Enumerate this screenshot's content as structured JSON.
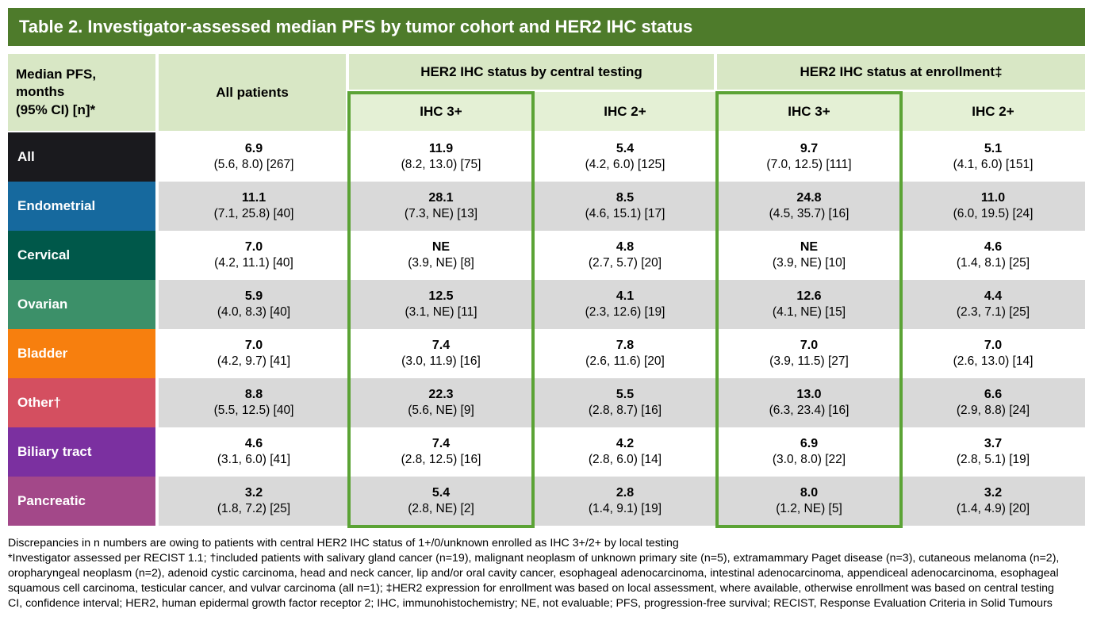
{
  "title": "Table 2. Investigator-assessed median PFS by tumor cohort and HER2 IHC status",
  "colors": {
    "title_bar": "#4e7b2b",
    "header_cell": "#d8e7c5",
    "subheader_cell": "#e4f0d5",
    "highlight_border": "#5ba335",
    "row_alt_gray": "#d9d9d9",
    "row_white": "#ffffff"
  },
  "header": {
    "measure_label": "Median PFS,\nmonths\n(95% CI) [n]*",
    "all_patients": "All patients",
    "group_central": "HER2 IHC status by central testing",
    "group_enrollment": "HER2 IHC status at enrollment‡",
    "sub_central_3plus": "IHC 3+",
    "sub_central_2plus": "IHC 2+",
    "sub_enrollment_3plus": "IHC 3+",
    "sub_enrollment_2plus": "IHC 2+"
  },
  "rows": [
    {
      "label": "All",
      "color": "#1a1a1e",
      "cells": [
        {
          "value": "6.9",
          "ci": "(5.6, 8.0) [267]"
        },
        {
          "value": "11.9",
          "ci": "(8.2, 13.0) [75]"
        },
        {
          "value": "5.4",
          "ci": "(4.2, 6.0) [125]"
        },
        {
          "value": "9.7",
          "ci": "(7.0, 12.5) [111]"
        },
        {
          "value": "5.1",
          "ci": "(4.1, 6.0) [151]"
        }
      ]
    },
    {
      "label": "Endometrial",
      "color": "#16699e",
      "cells": [
        {
          "value": "11.1",
          "ci": "(7.1, 25.8) [40]"
        },
        {
          "value": "28.1",
          "ci": "(7.3, NE) [13]"
        },
        {
          "value": "8.5",
          "ci": "(4.6, 15.1) [17]"
        },
        {
          "value": "24.8",
          "ci": "(4.5, 35.7) [16]"
        },
        {
          "value": "11.0",
          "ci": "(6.0, 19.5) [24]"
        }
      ]
    },
    {
      "label": "Cervical",
      "color": "#00584a",
      "cells": [
        {
          "value": "7.0",
          "ci": "(4.2, 11.1) [40]"
        },
        {
          "value": "NE",
          "ci": "(3.9, NE) [8]"
        },
        {
          "value": "4.8",
          "ci": "(2.7, 5.7) [20]"
        },
        {
          "value": "NE",
          "ci": "(3.9, NE) [10]"
        },
        {
          "value": "4.6",
          "ci": "(1.4, 8.1) [25]"
        }
      ]
    },
    {
      "label": "Ovarian",
      "color": "#3c9069",
      "cells": [
        {
          "value": "5.9",
          "ci": "(4.0, 8.3) [40]"
        },
        {
          "value": "12.5",
          "ci": "(3.1, NE) [11]"
        },
        {
          "value": "4.1",
          "ci": "(2.3, 12.6) [19]"
        },
        {
          "value": "12.6",
          "ci": "(4.1, NE) [15]"
        },
        {
          "value": "4.4",
          "ci": "(2.3, 7.1) [25]"
        }
      ]
    },
    {
      "label": "Bladder",
      "color": "#f77f0e",
      "cells": [
        {
          "value": "7.0",
          "ci": "(4.2, 9.7) [41]"
        },
        {
          "value": "7.4",
          "ci": "(3.0, 11.9) [16]"
        },
        {
          "value": "7.8",
          "ci": "(2.6, 11.6) [20]"
        },
        {
          "value": "7.0",
          "ci": "(3.9, 11.5) [27]"
        },
        {
          "value": "7.0",
          "ci": "(2.6, 13.0) [14]"
        }
      ]
    },
    {
      "label": "Other†",
      "color": "#d44f60",
      "cells": [
        {
          "value": "8.8",
          "ci": "(5.5, 12.5) [40]"
        },
        {
          "value": "22.3",
          "ci": "(5.6, NE) [9]"
        },
        {
          "value": "5.5",
          "ci": "(2.8, 8.7) [16]"
        },
        {
          "value": "13.0",
          "ci": "(6.3, 23.4) [16]"
        },
        {
          "value": "6.6",
          "ci": "(2.9, 8.8) [24]"
        }
      ]
    },
    {
      "label": "Biliary tract",
      "color": "#7b30a0",
      "cells": [
        {
          "value": "4.6",
          "ci": "(3.1, 6.0) [41]"
        },
        {
          "value": "7.4",
          "ci": "(2.8, 12.5) [16]"
        },
        {
          "value": "4.2",
          "ci": "(2.8, 6.0) [14]"
        },
        {
          "value": "6.9",
          "ci": "(3.0, 8.0) [22]"
        },
        {
          "value": "3.7",
          "ci": "(2.8, 5.1) [19]"
        }
      ]
    },
    {
      "label": "Pancreatic",
      "color": "#a34889",
      "cells": [
        {
          "value": "3.2",
          "ci": "(1.8, 7.2) [25]"
        },
        {
          "value": "5.4",
          "ci": "(2.8, NE) [2]"
        },
        {
          "value": "2.8",
          "ci": "(1.4, 9.1) [19]"
        },
        {
          "value": "8.0",
          "ci": "(1.2, NE) [5]"
        },
        {
          "value": "3.2",
          "ci": "(1.4, 4.9) [20]"
        }
      ]
    }
  ],
  "footnotes": [
    "Discrepancies in n numbers are owing to patients with central HER2 IHC status of 1+/0/unknown enrolled as IHC 3+/2+ by local testing",
    "*Investigator assessed per RECIST 1.1; †included patients with salivary gland cancer (n=19), malignant neoplasm of unknown primary site (n=5), extramammary Paget disease (n=3), cutaneous melanoma (n=2), oropharyngeal neoplasm (n=2), adenoid cystic carcinoma, head and neck cancer, lip and/or oral cavity cancer, esophageal adenocarcinoma, intestinal adenocarcinoma, appendiceal adenocarcinoma, esophageal squamous cell carcinoma, testicular cancer, and vulvar carcinoma (all n=1); ‡HER2 expression for enrollment was based on local assessment, where available, otherwise enrollment was based on central testing",
    "CI, confidence interval; HER2, human epidermal growth factor receptor 2; IHC, immunohistochemistry; NE, not evaluable; PFS, progression-free survival; RECIST, Response Evaluation Criteria in Solid Tumours"
  ]
}
